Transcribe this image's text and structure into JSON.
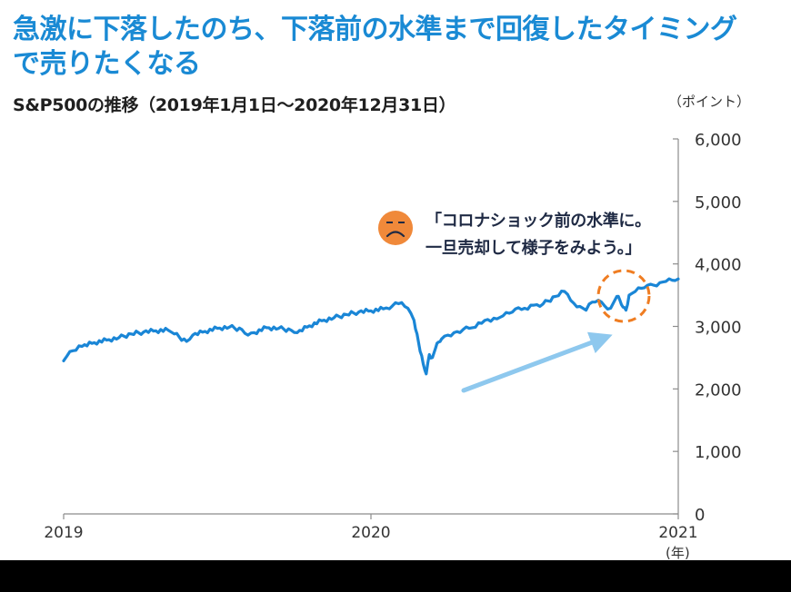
{
  "headline": {
    "line1": "急激に下落したのち、下落前の水準まで回復したタイミング",
    "line2": "で売りたくなる"
  },
  "subtitle": "S&P500の推移（2019年1月1日～2020年12月31日）",
  "y_unit": "（ポイント）",
  "x_unit": "(年)",
  "annotation": {
    "line1": "「コロナショック前の水準に。",
    "line2": "一旦売却して様子をみよう。」",
    "face_icon": "sad-face-icon"
  },
  "colors": {
    "headline": "#1a8ad4",
    "series": "#1a86d6",
    "arrow": "#8ec8ee",
    "circle": "#ef7d22",
    "face": "#f0893a"
  },
  "chart_data": {
    "type": "line",
    "title": "S&P500の推移（2019年1月1日～2020年12月31日）",
    "ylabel": "（ポイント）",
    "xlabel": "(年)",
    "ylim": [
      0,
      6000
    ],
    "xlim": [
      2019.0,
      2021.0
    ],
    "yticks": [
      0,
      1000,
      2000,
      3000,
      4000,
      5000,
      6000
    ],
    "ytick_labels": [
      "0",
      "1,000",
      "2,000",
      "3,000",
      "4,000",
      "5,000",
      "6,000"
    ],
    "xticks": [
      2019,
      2020,
      2021
    ],
    "xtick_labels": [
      "2019",
      "2020",
      "2021"
    ],
    "y_axis_side": "right",
    "grid": false,
    "series": [
      {
        "x": [
          2019.0,
          2019.01,
          2019.03,
          2019.06,
          2019.1,
          2019.14,
          2019.18,
          2019.22,
          2019.26,
          2019.3,
          2019.34,
          2019.36,
          2019.4,
          2019.42,
          2019.46,
          2019.5,
          2019.54,
          2019.58,
          2019.6,
          2019.62,
          2019.66,
          2019.7,
          2019.74,
          2019.76,
          2019.8,
          2019.84,
          2019.88,
          2019.92,
          2019.96,
          2020.0,
          2020.04,
          2020.07,
          2020.1,
          2020.12,
          2020.14,
          2020.15,
          2020.16,
          2020.17,
          2020.18,
          2020.19,
          2020.2,
          2020.21,
          2020.22,
          2020.23,
          2020.25,
          2020.27,
          2020.3,
          2020.33,
          2020.36,
          2020.38,
          2020.41,
          2020.43,
          2020.45,
          2020.47,
          2020.5,
          2020.53,
          2020.56,
          2020.6,
          2020.63,
          2020.66,
          2020.68,
          2020.7,
          2020.72,
          2020.74,
          2020.76,
          2020.78,
          2020.8,
          2020.81,
          2020.82,
          2020.83,
          2020.84,
          2020.86,
          2020.88,
          2020.9,
          2020.92,
          2020.94,
          2020.96,
          2020.98,
          2021.0
        ],
        "y": [
          2450,
          2520,
          2610,
          2680,
          2740,
          2780,
          2820,
          2880,
          2910,
          2930,
          2940,
          2880,
          2760,
          2860,
          2920,
          2970,
          2990,
          2950,
          2860,
          2900,
          2980,
          2970,
          2940,
          2900,
          3010,
          3090,
          3140,
          3190,
          3230,
          3250,
          3280,
          3330,
          3380,
          3290,
          3100,
          2880,
          2600,
          2400,
          2240,
          2550,
          2500,
          2650,
          2750,
          2800,
          2860,
          2900,
          2950,
          2980,
          3050,
          3110,
          3120,
          3170,
          3210,
          3280,
          3290,
          3340,
          3360,
          3480,
          3560,
          3370,
          3320,
          3260,
          3390,
          3420,
          3330,
          3290,
          3480,
          3420,
          3310,
          3260,
          3500,
          3560,
          3610,
          3660,
          3660,
          3700,
          3720,
          3740,
          3760
        ]
      }
    ]
  }
}
